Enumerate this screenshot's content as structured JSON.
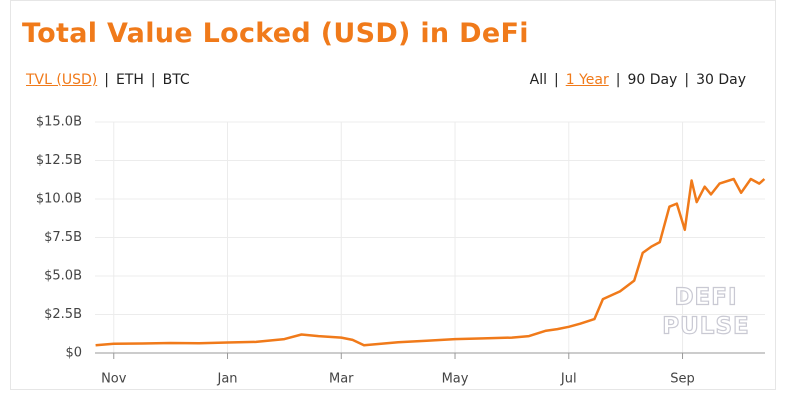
{
  "chart_data": {
    "type": "line",
    "title": "Total Value Locked (USD) in DeFi",
    "metric_options": [
      "TVL (USD)",
      "ETH",
      "BTC"
    ],
    "metric_selected": 0,
    "range_options": [
      "All",
      "1 Year",
      "90 Day",
      "30 Day"
    ],
    "range_selected": 1,
    "watermark": [
      "DEFI",
      "PULSE"
    ],
    "x": [
      -0.32,
      0,
      0.5,
      1,
      1.5,
      2,
      2.5,
      3,
      3.3,
      3.6,
      4,
      4.2,
      4.4,
      4.7,
      5,
      5.5,
      6,
      6.5,
      7,
      7.3,
      7.6,
      7.8,
      8,
      8.2,
      8.45,
      8.6,
      8.9,
      9.15,
      9.3,
      9.45,
      9.6,
      9.77,
      9.9,
      10.04,
      10.16,
      10.25,
      10.39,
      10.5,
      10.65,
      10.9,
      11.03,
      11.2,
      11.35,
      11.44
    ],
    "series": [
      {
        "name": "TVL (USD)",
        "color": "#f07a1a",
        "values": [
          0.5,
          0.6,
          0.62,
          0.65,
          0.63,
          0.68,
          0.72,
          0.9,
          1.2,
          1.1,
          1.0,
          0.85,
          0.5,
          0.6,
          0.7,
          0.8,
          0.9,
          0.95,
          1.0,
          1.1,
          1.45,
          1.55,
          1.7,
          1.9,
          2.2,
          3.5,
          4.0,
          4.7,
          6.5,
          6.9,
          7.2,
          9.5,
          9.7,
          8.0,
          11.2,
          9.8,
          10.8,
          10.3,
          11.0,
          11.3,
          10.4,
          11.3,
          11.0,
          11.3
        ]
      }
    ],
    "xlim": [
      -0.33,
      11.45
    ],
    "xticks": [
      {
        "value": 0,
        "label": "Nov"
      },
      {
        "value": 2,
        "label": "Jan"
      },
      {
        "value": 4,
        "label": "Mar"
      },
      {
        "value": 6,
        "label": "May"
      },
      {
        "value": 8,
        "label": "Jul"
      },
      {
        "value": 10,
        "label": "Sep"
      }
    ],
    "ylim": [
      0,
      15
    ],
    "yticks": [
      {
        "value": 0,
        "label": "$0"
      },
      {
        "value": 2.5,
        "label": "$2.5B"
      },
      {
        "value": 5,
        "label": "$5.0B"
      },
      {
        "value": 7.5,
        "label": "$7.5B"
      },
      {
        "value": 10,
        "label": "$10.0B"
      },
      {
        "value": 12.5,
        "label": "$12.5B"
      },
      {
        "value": 15,
        "label": "$15.0B"
      }
    ],
    "grid": true
  }
}
